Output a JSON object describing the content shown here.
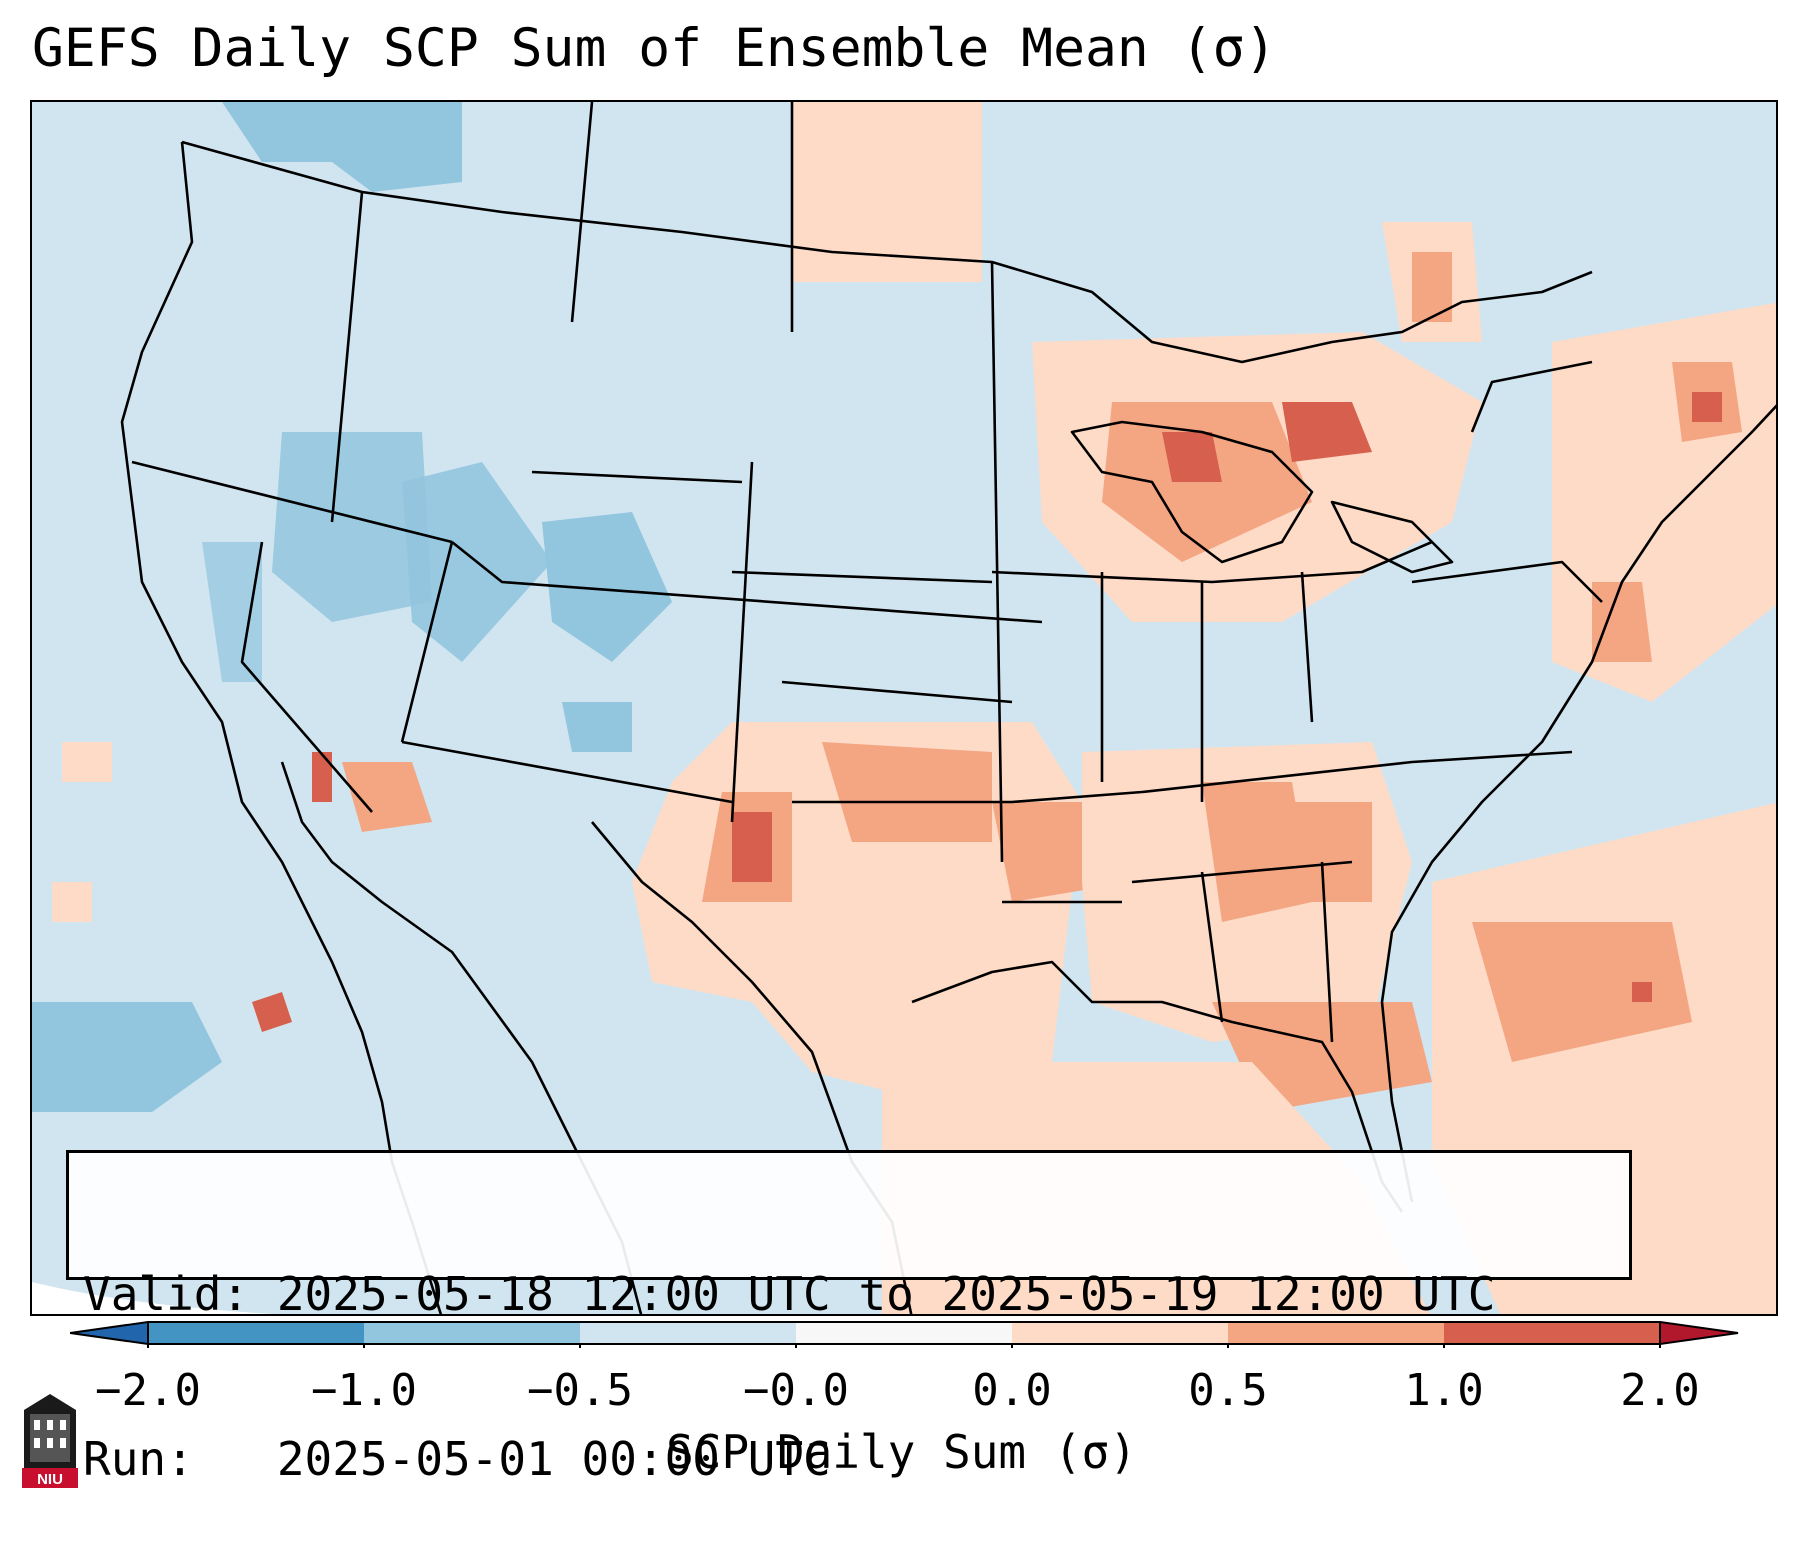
{
  "title": "GEFS Daily SCP Sum of Ensemble Mean (σ)",
  "info": {
    "valid_line": "Valid: 2025-05-18 12:00 UTC to 2025-05-19 12:00 UTC",
    "run_line": "Run:   2025-05-01 00:00 UTC"
  },
  "colorbar": {
    "label": "SCP Daily Sum (σ)",
    "ticks": [
      "−2.0",
      "−1.0",
      "−0.5",
      "−0.0",
      "0.0",
      "0.5",
      "1.0",
      "2.0"
    ],
    "colors": [
      "#4393c3",
      "#92c5de",
      "#d1e5f0",
      "#f7f7f7",
      "#fddbc7",
      "#f4a582",
      "#d6604d"
    ],
    "extend_low_color": "#2166ac",
    "extend_high_color": "#b2182b"
  },
  "logo": {
    "text": "NIU",
    "icon": "university-logo"
  }
}
